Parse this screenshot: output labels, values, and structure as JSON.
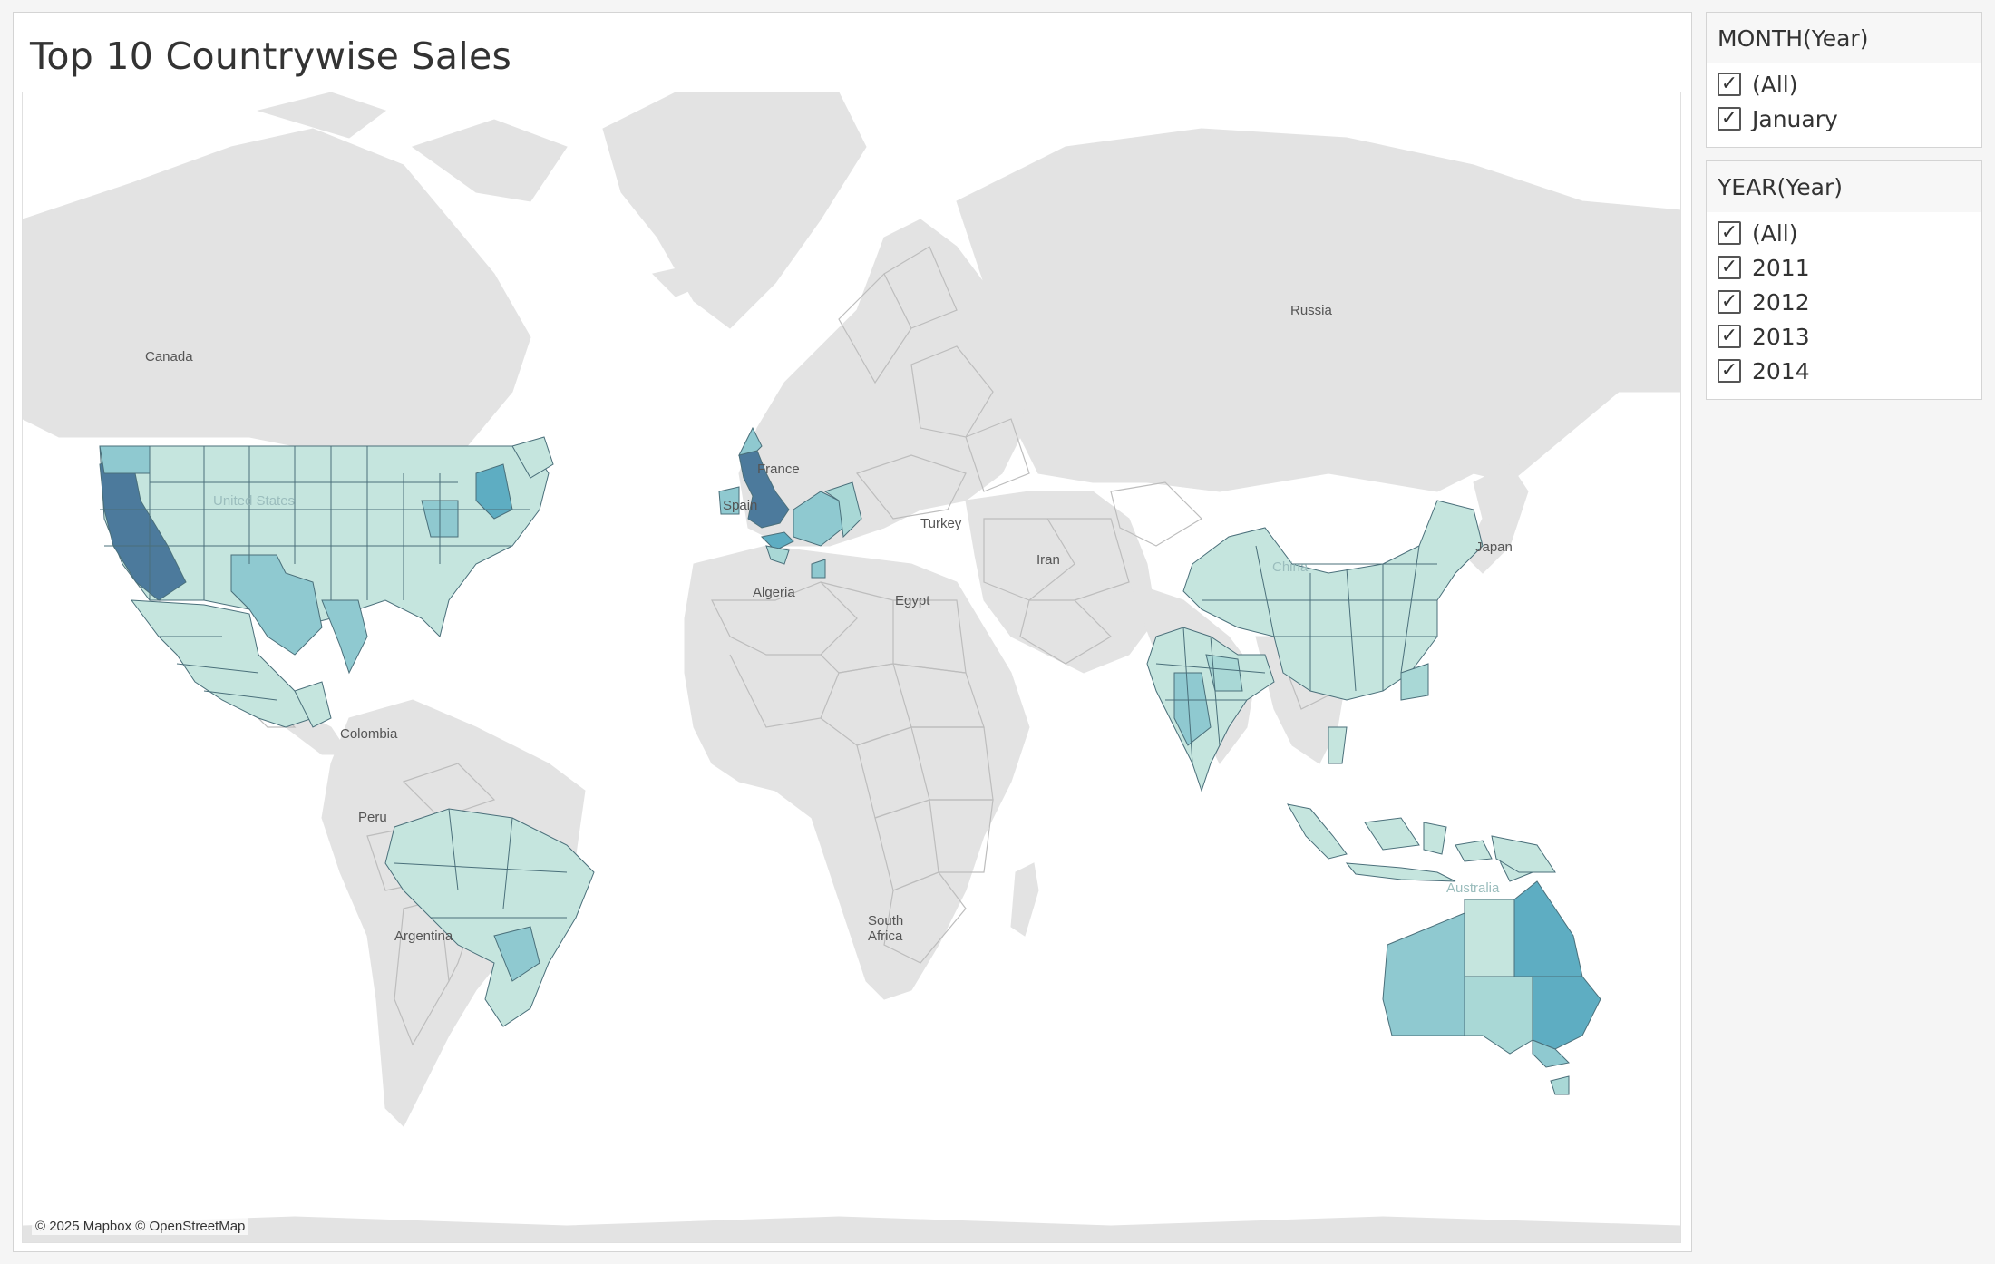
{
  "dashboard": {
    "title": "Top 10 Countrywise Sales"
  },
  "map": {
    "credit": "© 2025 Mapbox © OpenStreetMap",
    "labels": {
      "canada": "Canada",
      "russia": "Russia",
      "france": "France",
      "spain": "Spain",
      "turkey": "Turkey",
      "iran": "Iran",
      "japan": "Japan",
      "algeria": "Algeria",
      "egypt": "Egypt",
      "colombia": "Colombia",
      "peru": "Peru",
      "argentina": "Argentina",
      "south_africa_1": "South",
      "south_africa_2": "Africa",
      "australia": "Australia",
      "china": "China",
      "united_states": "United States"
    },
    "colors": {
      "low": "#c5e5de",
      "mid_low": "#a9d8d6",
      "mid": "#8fc9d0",
      "mid_high": "#5eadc2",
      "high": "#4c7a9c",
      "land": "#e3e3e3",
      "water": "#ffffff"
    }
  },
  "filters": {
    "month": {
      "header": "MONTH(Year)",
      "options": [
        {
          "label": "(All)",
          "checked": true
        },
        {
          "label": "January",
          "checked": true
        }
      ]
    },
    "year": {
      "header": "YEAR(Year)",
      "options": [
        {
          "label": "(All)",
          "checked": true
        },
        {
          "label": "2011",
          "checked": true
        },
        {
          "label": "2012",
          "checked": true
        },
        {
          "label": "2013",
          "checked": true
        },
        {
          "label": "2014",
          "checked": true
        }
      ]
    }
  }
}
